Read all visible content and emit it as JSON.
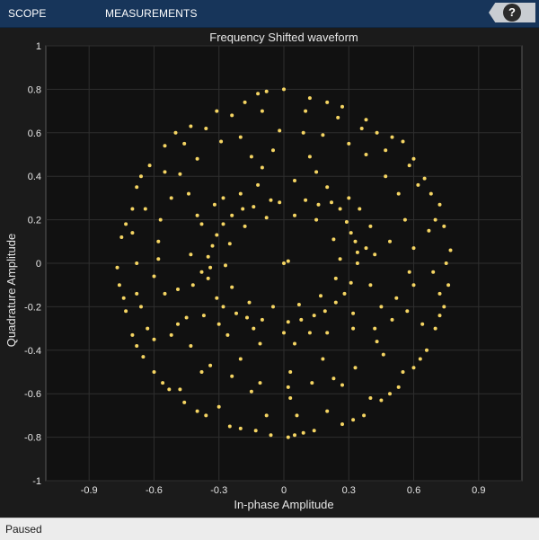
{
  "toolstrip": {
    "tabs": [
      {
        "label": "SCOPE"
      },
      {
        "label": "MEASUREMENTS"
      }
    ],
    "help_label": "?"
  },
  "status": {
    "text": "Paused"
  },
  "colors": {
    "toolstrip_bg": "#17355a",
    "plot_bg": "#111111",
    "figure_bg": "#1b1b1b",
    "points": "#f5d563",
    "grid": "#2f2f2f",
    "text": "#e6e6e6"
  },
  "chart_data": {
    "type": "scatter",
    "title": "Frequency Shifted waveform",
    "xlabel": "In-phase Amplitude",
    "ylabel": "Quadrature Amplitude",
    "xlim": [
      -1.1,
      1.1
    ],
    "ylim": [
      -1,
      1
    ],
    "xticks": [
      -0.9,
      -0.6,
      -0.3,
      0,
      0.3,
      0.6,
      0.9
    ],
    "xtick_labels": [
      "-0.9",
      "-0.6",
      "-0.3",
      "0",
      "0.3",
      "0.6",
      "0.9"
    ],
    "yticks": [
      -1,
      -0.8,
      -0.6,
      -0.4,
      -0.2,
      0,
      0.2,
      0.4,
      0.6,
      0.8,
      1
    ],
    "ytick_labels": [
      "-1",
      "-0.8",
      "-0.6",
      "-0.4",
      "-0.2",
      "0",
      "0.2",
      "0.4",
      "0.6",
      "0.8",
      "1"
    ],
    "grid": true,
    "legend": "none",
    "points": [
      [
        0.0,
        0.8
      ],
      [
        0.02,
        -0.8
      ],
      [
        -0.06,
        -0.79
      ],
      [
        0.12,
        0.76
      ],
      [
        -0.18,
        0.74
      ],
      [
        0.27,
        0.72
      ],
      [
        -0.31,
        0.7
      ],
      [
        0.38,
        0.66
      ],
      [
        -0.43,
        0.63
      ],
      [
        0.5,
        0.58
      ],
      [
        -0.55,
        0.54
      ],
      [
        0.6,
        0.48
      ],
      [
        -0.62,
        0.45
      ],
      [
        0.65,
        0.39
      ],
      [
        -0.68,
        0.35
      ],
      [
        0.72,
        0.27
      ],
      [
        -0.7,
        0.25
      ],
      [
        0.74,
        0.17
      ],
      [
        -0.75,
        0.12
      ],
      [
        0.77,
        0.06
      ],
      [
        -0.77,
        -0.02
      ],
      [
        0.76,
        -0.1
      ],
      [
        -0.76,
        -0.1
      ],
      [
        0.74,
        -0.2
      ],
      [
        -0.73,
        -0.22
      ],
      [
        0.7,
        -0.3
      ],
      [
        -0.7,
        -0.33
      ],
      [
        0.66,
        -0.4
      ],
      [
        -0.65,
        -0.43
      ],
      [
        0.6,
        -0.48
      ],
      [
        -0.6,
        -0.5
      ],
      [
        0.53,
        -0.57
      ],
      [
        -0.53,
        -0.58
      ],
      [
        0.45,
        -0.63
      ],
      [
        -0.46,
        -0.64
      ],
      [
        0.37,
        -0.7
      ],
      [
        -0.36,
        -0.7
      ],
      [
        0.27,
        -0.74
      ],
      [
        -0.25,
        -0.75
      ],
      [
        0.14,
        -0.77
      ],
      [
        -0.13,
        -0.77
      ],
      [
        0.05,
        -0.79
      ],
      [
        0.43,
        0.6
      ],
      [
        -0.12,
        0.78
      ],
      [
        0.2,
        0.74
      ],
      [
        -0.5,
        0.6
      ],
      [
        0.55,
        0.56
      ],
      [
        -0.66,
        0.4
      ],
      [
        0.68,
        0.32
      ],
      [
        -0.73,
        0.18
      ],
      [
        0.75,
        0.0
      ],
      [
        -0.74,
        -0.16
      ],
      [
        0.72,
        -0.24
      ],
      [
        -0.68,
        -0.38
      ],
      [
        0.63,
        -0.44
      ],
      [
        -0.56,
        -0.55
      ],
      [
        0.49,
        -0.6
      ],
      [
        -0.4,
        -0.68
      ],
      [
        0.32,
        -0.72
      ],
      [
        -0.2,
        -0.76
      ],
      [
        0.09,
        -0.78
      ],
      [
        -0.08,
        0.79
      ],
      [
        0.6,
        0.07
      ],
      [
        -0.58,
        0.02
      ],
      [
        0.52,
        -0.16
      ],
      [
        -0.49,
        -0.28
      ],
      [
        0.43,
        -0.36
      ],
      [
        -0.34,
        -0.47
      ],
      [
        0.23,
        -0.53
      ],
      [
        -0.11,
        -0.55
      ],
      [
        0.02,
        -0.57
      ],
      [
        0.13,
        -0.55
      ],
      [
        -0.24,
        -0.52
      ],
      [
        0.33,
        -0.48
      ],
      [
        -0.43,
        -0.38
      ],
      [
        0.5,
        -0.26
      ],
      [
        -0.55,
        -0.14
      ],
      [
        0.58,
        -0.04
      ],
      [
        -0.58,
        0.1
      ],
      [
        0.56,
        0.2
      ],
      [
        -0.52,
        0.3
      ],
      [
        0.47,
        0.4
      ],
      [
        -0.4,
        0.48
      ],
      [
        0.3,
        0.55
      ],
      [
        -0.2,
        0.58
      ],
      [
        0.09,
        0.6
      ],
      [
        -0.02,
        0.61
      ],
      [
        0.18,
        0.59
      ],
      [
        -0.29,
        0.56
      ],
      [
        0.38,
        0.5
      ],
      [
        -0.48,
        0.41
      ],
      [
        0.53,
        0.32
      ],
      [
        -0.57,
        0.2
      ],
      [
        0.6,
        -0.1
      ],
      [
        -0.6,
        -0.06
      ],
      [
        0.57,
        -0.22
      ],
      [
        -0.52,
        -0.33
      ],
      [
        0.46,
        -0.42
      ],
      [
        -0.38,
        -0.5
      ],
      [
        0.27,
        -0.56
      ],
      [
        -0.15,
        -0.59
      ],
      [
        0.03,
        -0.62
      ],
      [
        -0.68,
        0.0
      ],
      [
        0.69,
        -0.04
      ],
      [
        -0.66,
        -0.2
      ],
      [
        0.67,
        0.15
      ],
      [
        -0.64,
        0.25
      ],
      [
        0.64,
        -0.28
      ],
      [
        -0.6,
        -0.35
      ],
      [
        0.62,
        0.36
      ],
      [
        -0.55,
        0.42
      ],
      [
        0.58,
        0.45
      ],
      [
        -0.46,
        0.55
      ],
      [
        0.47,
        0.52
      ],
      [
        -0.36,
        0.62
      ],
      [
        0.36,
        0.62
      ],
      [
        -0.24,
        0.68
      ],
      [
        0.25,
        0.67
      ],
      [
        -0.1,
        0.7
      ],
      [
        0.1,
        0.7
      ],
      [
        -0.63,
        -0.3
      ],
      [
        0.55,
        -0.5
      ],
      [
        -0.48,
        -0.58
      ],
      [
        0.4,
        -0.62
      ],
      [
        -0.3,
        -0.66
      ],
      [
        0.2,
        -0.68
      ],
      [
        -0.08,
        -0.7
      ],
      [
        0.06,
        -0.7
      ],
      [
        -0.7,
        0.14
      ],
      [
        0.7,
        0.2
      ],
      [
        -0.68,
        -0.14
      ],
      [
        0.72,
        -0.14
      ],
      [
        0.22,
        0.28
      ],
      [
        0.1,
        0.29
      ],
      [
        -0.02,
        0.28
      ],
      [
        -0.14,
        0.26
      ],
      [
        -0.24,
        0.22
      ],
      [
        -0.31,
        0.13
      ],
      [
        -0.35,
        0.03
      ],
      [
        -0.35,
        -0.07
      ],
      [
        -0.31,
        -0.16
      ],
      [
        -0.22,
        -0.23
      ],
      [
        -0.1,
        -0.26
      ],
      [
        0.02,
        -0.27
      ],
      [
        0.14,
        -0.24
      ],
      [
        0.24,
        -0.18
      ],
      [
        0.31,
        -0.09
      ],
      [
        0.34,
        0.0
      ],
      [
        0.33,
        0.1
      ],
      [
        0.29,
        0.19
      ],
      [
        0.26,
        0.25
      ],
      [
        -0.19,
        0.25
      ],
      [
        -0.33,
        0.08
      ],
      [
        -0.28,
        -0.2
      ],
      [
        0.08,
        -0.26
      ],
      [
        0.28,
        -0.14
      ],
      [
        0.34,
        0.05
      ],
      [
        0.16,
        0.27
      ],
      [
        -0.06,
        0.29
      ],
      [
        -0.28,
        0.18
      ],
      [
        -0.34,
        -0.02
      ],
      [
        -0.17,
        -0.25
      ],
      [
        0.19,
        -0.22
      ],
      [
        0.31,
        0.14
      ],
      [
        0.15,
        0.2
      ],
      [
        0.05,
        0.22
      ],
      [
        -0.08,
        0.21
      ],
      [
        -0.18,
        0.17
      ],
      [
        -0.25,
        0.09
      ],
      [
        -0.27,
        -0.01
      ],
      [
        -0.24,
        -0.11
      ],
      [
        -0.16,
        -0.18
      ],
      [
        -0.05,
        -0.2
      ],
      [
        0.07,
        -0.19
      ],
      [
        0.17,
        -0.15
      ],
      [
        0.24,
        -0.07
      ],
      [
        0.26,
        0.02
      ],
      [
        0.23,
        0.11
      ],
      [
        0.35,
        0.25
      ],
      [
        0.2,
        0.35
      ],
      [
        0.05,
        0.38
      ],
      [
        -0.12,
        0.36
      ],
      [
        -0.28,
        0.3
      ],
      [
        -0.38,
        0.18
      ],
      [
        -0.43,
        0.04
      ],
      [
        -0.42,
        -0.1
      ],
      [
        -0.37,
        -0.24
      ],
      [
        -0.26,
        -0.33
      ],
      [
        -0.11,
        -0.37
      ],
      [
        0.05,
        -0.37
      ],
      [
        0.2,
        -0.32
      ],
      [
        0.32,
        -0.23
      ],
      [
        0.4,
        -0.1
      ],
      [
        0.42,
        0.04
      ],
      [
        0.4,
        0.17
      ],
      [
        -0.4,
        0.22
      ],
      [
        -0.1,
        0.44
      ],
      [
        0.15,
        0.42
      ],
      [
        0.45,
        -0.2
      ],
      [
        -0.45,
        -0.25
      ],
      [
        0.0,
        0.0
      ],
      [
        0.02,
        0.01
      ],
      [
        -0.14,
        -0.3
      ],
      [
        -0.3,
        -0.28
      ],
      [
        0.3,
        0.3
      ],
      [
        -0.32,
        0.27
      ],
      [
        0.32,
        -0.3
      ],
      [
        0.12,
        -0.32
      ],
      [
        -0.2,
        0.32
      ],
      [
        0.0,
        -0.32
      ],
      [
        -0.38,
        -0.04
      ],
      [
        0.38,
        0.07
      ],
      [
        0.42,
        -0.3
      ],
      [
        -0.44,
        0.32
      ],
      [
        -0.15,
        0.49
      ],
      [
        0.12,
        0.49
      ],
      [
        0.18,
        -0.44
      ],
      [
        -0.2,
        -0.44
      ],
      [
        0.49,
        0.1
      ],
      [
        -0.49,
        -0.12
      ],
      [
        -0.05,
        0.52
      ],
      [
        0.03,
        -0.5
      ]
    ]
  }
}
